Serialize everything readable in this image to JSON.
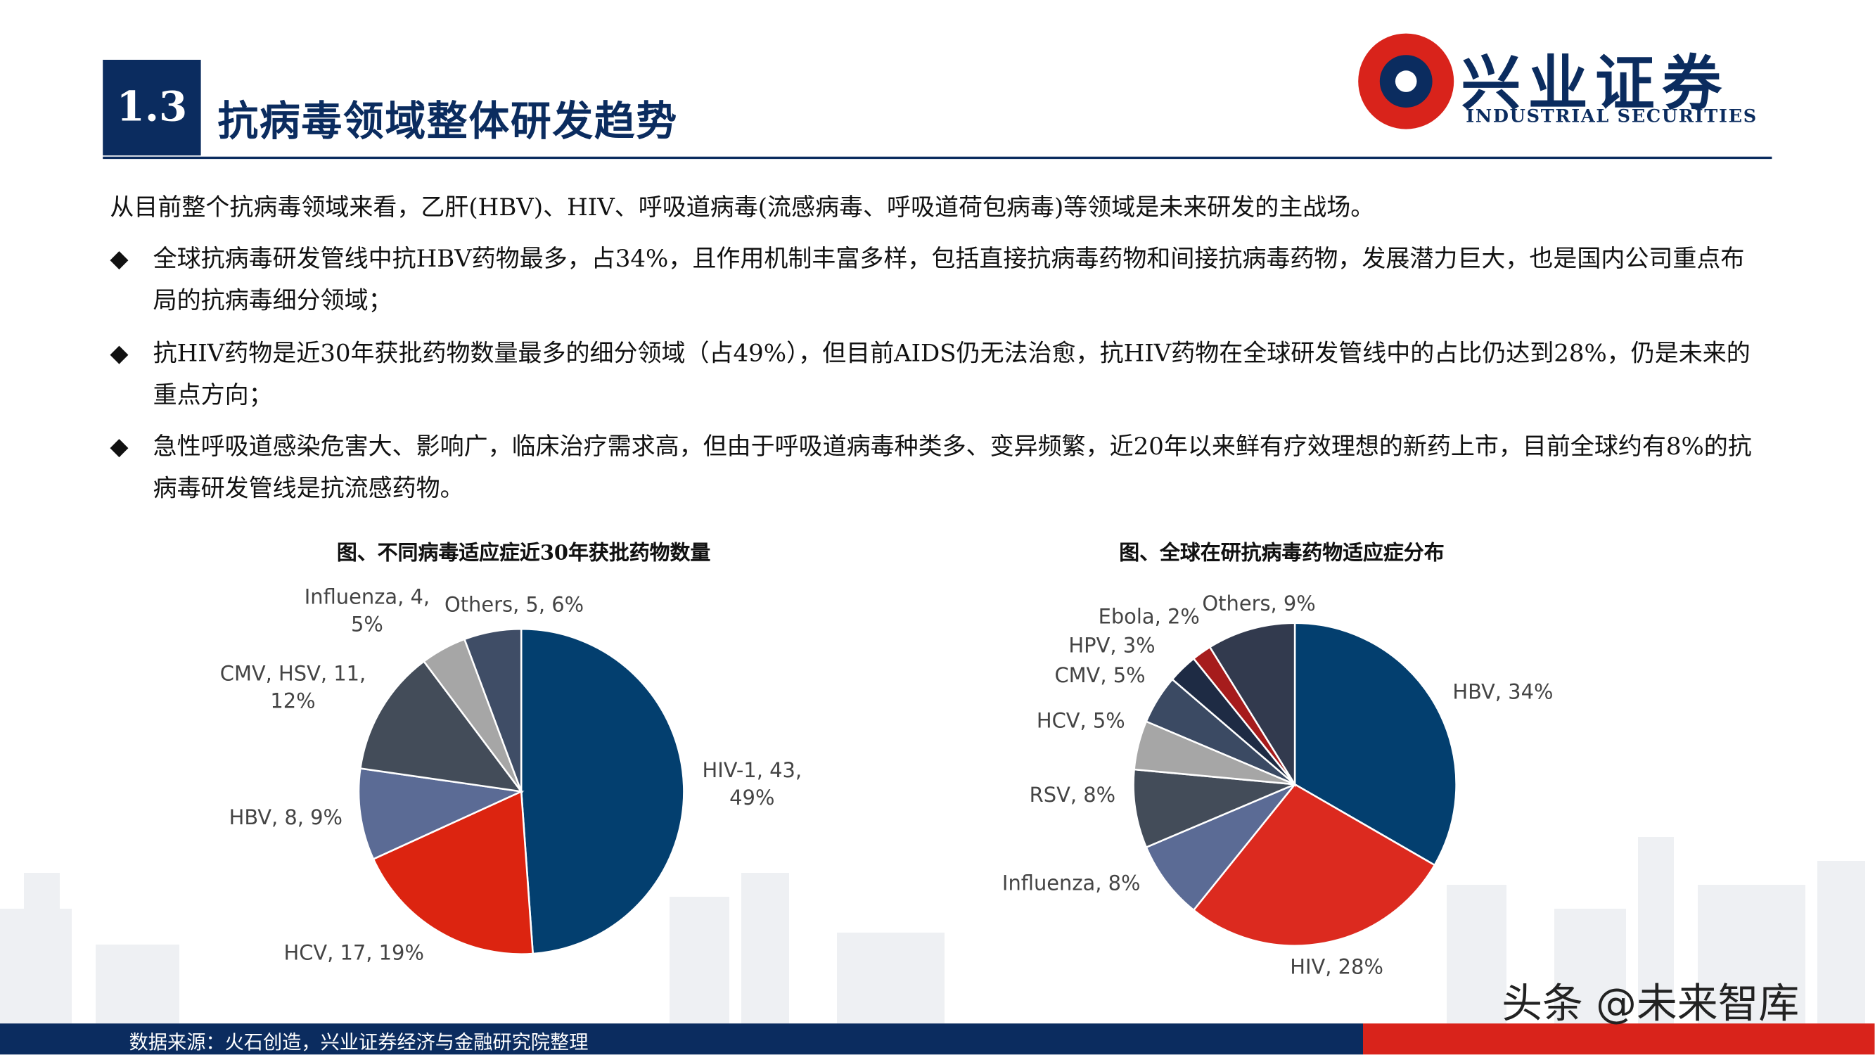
{
  "header": {
    "number": "1.3",
    "title": "抗病毒领域整体研发趋势",
    "logo_cn": "兴业证券",
    "logo_en": "INDUSTRIAL SECURITIES"
  },
  "intro": "从目前整个抗病毒领域来看，乙肝(HBV)、HIV、呼吸道病毒(流感病毒、呼吸道荷包病毒)等领域是未来研发的主战场。",
  "bullets": [
    "全球抗病毒研发管线中抗HBV药物最多，占34%，且作用机制丰富多样，包括直接抗病毒药物和间接抗病毒药物，发展潜力巨大，也是国内公司重点布局的抗病毒细分领域；",
    "抗HIV药物是近30年获批药物数量最多的细分领域（占49%），但目前AIDS仍无法治愈，抗HIV药物在全球研发管线中的占比仍达到28%，仍是未来的重点方向；",
    "急性呼吸道感染危害大、影响广，临床治疗需求高，但由于呼吸道病毒种类多、变异频繁，近20年以来鲜有疗效理想的新药上市，目前全球约有8%的抗病毒研发管线是抗流感药物。"
  ],
  "chart_data": [
    {
      "type": "pie",
      "title": "图、不同病毒适应症近30年获批药物数量",
      "categories": [
        "HIV-1",
        "HCV",
        "HBV",
        "CMV, HSV",
        "Influenza",
        "Others"
      ],
      "values": [
        43,
        17,
        8,
        11,
        4,
        5
      ],
      "value_labels": [
        "HIV-1, 43,\n49%",
        "HCV, 17, 19%",
        "HBV, 8, 9%",
        "CMV, HSV, 11,\n12%",
        "Influenza, 4,\n5%",
        "Others, 5, 6%"
      ],
      "colors": [
        "#033f6f",
        "#dc2410",
        "#5b6b95",
        "#434c59",
        "#a6a6a6",
        "#3f4d66"
      ]
    },
    {
      "type": "pie",
      "title": "图、全球在研抗病毒药物适应症分布",
      "categories": [
        "HBV",
        "HIV",
        "Influenza",
        "RSV",
        "HCV",
        "CMV",
        "HPV",
        "Ebola",
        "Others"
      ],
      "values": [
        34,
        28,
        8,
        8,
        5,
        5,
        3,
        2,
        9
      ],
      "value_labels": [
        "HBV, 34%",
        "HIV, 28%",
        "Influenza, 8%",
        "RSV, 8%",
        "HCV, 5%",
        "CMV, 5%",
        "HPV, 3%",
        "Ebola, 2%",
        "Others, 9%"
      ],
      "colors": [
        "#033f6f",
        "#dc2a1f",
        "#5b6b95",
        "#434c59",
        "#a6a6a6",
        "#3b4a63",
        "#1e2b44",
        "#a61c1c",
        "#323a4e"
      ]
    }
  ],
  "source": "数据来源：火石创造，兴业证券经济与金融研究院整理",
  "watermark": "头条 @未来智库"
}
